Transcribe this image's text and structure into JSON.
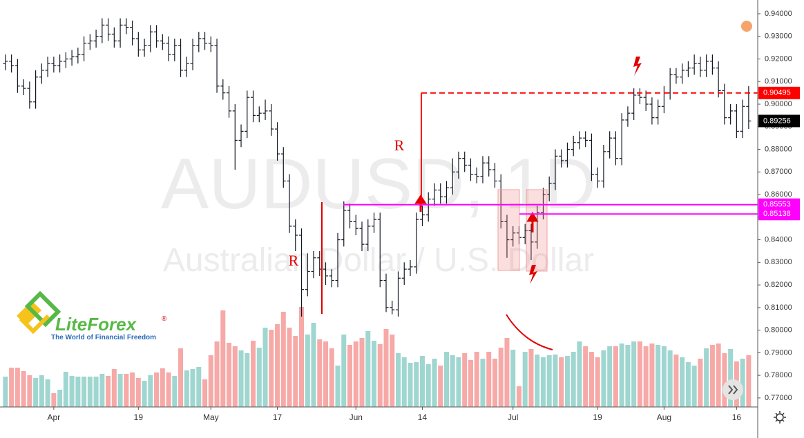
{
  "chart_data": {
    "type": "ohlc",
    "symbol": "AUDUSD, 1D",
    "description": "Australian Dollar / U.S. Dollar",
    "ohlc": [
      [
        0.918,
        0.922,
        0.915,
        0.919
      ],
      [
        0.919,
        0.922,
        0.914,
        0.917
      ],
      [
        0.917,
        0.92,
        0.905,
        0.908
      ],
      [
        0.908,
        0.911,
        0.904,
        0.907
      ],
      [
        0.907,
        0.91,
        0.898,
        0.901
      ],
      [
        0.901,
        0.915,
        0.898,
        0.912
      ],
      [
        0.912,
        0.918,
        0.909,
        0.915
      ],
      [
        0.915,
        0.921,
        0.912,
        0.918
      ],
      [
        0.918,
        0.921,
        0.914,
        0.917
      ],
      [
        0.917,
        0.922,
        0.914,
        0.919
      ],
      [
        0.919,
        0.923,
        0.916,
        0.92
      ],
      [
        0.92,
        0.924,
        0.917,
        0.921
      ],
      [
        0.921,
        0.925,
        0.918,
        0.922
      ],
      [
        0.922,
        0.93,
        0.919,
        0.927
      ],
      [
        0.927,
        0.931,
        0.924,
        0.928
      ],
      [
        0.928,
        0.933,
        0.925,
        0.93
      ],
      [
        0.93,
        0.938,
        0.927,
        0.935
      ],
      [
        0.935,
        0.938,
        0.928,
        0.931
      ],
      [
        0.931,
        0.934,
        0.925,
        0.928
      ],
      [
        0.928,
        0.938,
        0.925,
        0.935
      ],
      [
        0.935,
        0.938,
        0.931,
        0.934
      ],
      [
        0.934,
        0.937,
        0.926,
        0.929
      ],
      [
        0.929,
        0.932,
        0.921,
        0.924
      ],
      [
        0.924,
        0.929,
        0.921,
        0.926
      ],
      [
        0.926,
        0.935,
        0.923,
        0.932
      ],
      [
        0.932,
        0.935,
        0.925,
        0.928
      ],
      [
        0.928,
        0.931,
        0.924,
        0.927
      ],
      [
        0.927,
        0.93,
        0.919,
        0.922
      ],
      [
        0.922,
        0.929,
        0.919,
        0.926
      ],
      [
        0.926,
        0.929,
        0.912,
        0.915
      ],
      [
        0.915,
        0.921,
        0.912,
        0.918
      ],
      [
        0.918,
        0.929,
        0.915,
        0.926
      ],
      [
        0.926,
        0.932,
        0.923,
        0.929
      ],
      [
        0.929,
        0.932,
        0.924,
        0.927
      ],
      [
        0.927,
        0.93,
        0.923,
        0.926
      ],
      [
        0.926,
        0.929,
        0.905,
        0.908
      ],
      [
        0.908,
        0.911,
        0.902,
        0.905
      ],
      [
        0.905,
        0.908,
        0.894,
        0.897
      ],
      [
        0.897,
        0.9,
        0.871,
        0.884
      ],
      [
        0.884,
        0.891,
        0.881,
        0.888
      ],
      [
        0.888,
        0.906,
        0.885,
        0.903
      ],
      [
        0.903,
        0.906,
        0.892,
        0.895
      ],
      [
        0.895,
        0.899,
        0.892,
        0.896
      ],
      [
        0.896,
        0.902,
        0.893,
        0.897
      ],
      [
        0.897,
        0.9,
        0.886,
        0.889
      ],
      [
        0.889,
        0.892,
        0.875,
        0.878
      ],
      [
        0.878,
        0.881,
        0.863,
        0.866
      ],
      [
        0.866,
        0.869,
        0.843,
        0.846
      ],
      [
        0.846,
        0.849,
        0.835,
        0.842
      ],
      [
        0.842,
        0.845,
        0.806,
        0.818
      ],
      [
        0.818,
        0.834,
        0.815,
        0.826
      ],
      [
        0.826,
        0.835,
        0.823,
        0.832
      ],
      [
        0.832,
        0.835,
        0.824,
        0.827
      ],
      [
        0.827,
        0.83,
        0.82,
        0.824
      ],
      [
        0.824,
        0.827,
        0.819,
        0.822
      ],
      [
        0.822,
        0.843,
        0.819,
        0.84
      ],
      [
        0.84,
        0.857,
        0.837,
        0.853
      ],
      [
        0.853,
        0.856,
        0.845,
        0.848
      ],
      [
        0.848,
        0.851,
        0.842,
        0.845
      ],
      [
        0.845,
        0.848,
        0.835,
        0.838
      ],
      [
        0.838,
        0.849,
        0.835,
        0.846
      ],
      [
        0.846,
        0.852,
        0.843,
        0.849
      ],
      [
        0.849,
        0.852,
        0.819,
        0.822
      ],
      [
        0.822,
        0.825,
        0.808,
        0.81
      ],
      [
        0.81,
        0.813,
        0.807,
        0.809
      ],
      [
        0.809,
        0.826,
        0.806,
        0.823
      ],
      [
        0.823,
        0.83,
        0.82,
        0.827
      ],
      [
        0.827,
        0.831,
        0.824,
        0.828
      ],
      [
        0.828,
        0.852,
        0.825,
        0.849
      ],
      [
        0.849,
        0.855,
        0.846,
        0.851
      ],
      [
        0.851,
        0.861,
        0.848,
        0.858
      ],
      [
        0.858,
        0.865,
        0.855,
        0.862
      ],
      [
        0.862,
        0.865,
        0.856,
        0.859
      ],
      [
        0.859,
        0.866,
        0.856,
        0.863
      ],
      [
        0.863,
        0.876,
        0.86,
        0.87
      ],
      [
        0.87,
        0.879,
        0.867,
        0.876
      ],
      [
        0.876,
        0.879,
        0.87,
        0.873
      ],
      [
        0.873,
        0.876,
        0.866,
        0.869
      ],
      [
        0.869,
        0.872,
        0.865,
        0.868
      ],
      [
        0.868,
        0.877,
        0.865,
        0.874
      ],
      [
        0.874,
        0.877,
        0.868,
        0.871
      ],
      [
        0.871,
        0.874,
        0.863,
        0.866
      ],
      [
        0.866,
        0.869,
        0.845,
        0.848
      ],
      [
        0.848,
        0.851,
        0.832,
        0.84
      ],
      [
        0.84,
        0.846,
        0.837,
        0.843
      ],
      [
        0.843,
        0.846,
        0.838,
        0.841
      ],
      [
        0.841,
        0.847,
        0.838,
        0.844
      ],
      [
        0.844,
        0.847,
        0.831,
        0.839
      ],
      [
        0.839,
        0.855,
        0.836,
        0.852
      ],
      [
        0.852,
        0.863,
        0.849,
        0.86
      ],
      [
        0.86,
        0.868,
        0.857,
        0.865
      ],
      [
        0.865,
        0.88,
        0.862,
        0.877
      ],
      [
        0.877,
        0.88,
        0.872,
        0.875
      ],
      [
        0.875,
        0.883,
        0.872,
        0.88
      ],
      [
        0.88,
        0.886,
        0.877,
        0.883
      ],
      [
        0.883,
        0.888,
        0.88,
        0.885
      ],
      [
        0.885,
        0.888,
        0.881,
        0.884
      ],
      [
        0.884,
        0.887,
        0.866,
        0.869
      ],
      [
        0.869,
        0.872,
        0.863,
        0.866
      ],
      [
        0.866,
        0.882,
        0.863,
        0.879
      ],
      [
        0.879,
        0.888,
        0.876,
        0.885
      ],
      [
        0.885,
        0.888,
        0.873,
        0.876
      ],
      [
        0.876,
        0.896,
        0.873,
        0.893
      ],
      [
        0.893,
        0.899,
        0.89,
        0.896
      ],
      [
        0.896,
        0.907,
        0.893,
        0.904
      ],
      [
        0.904,
        0.907,
        0.9,
        0.903
      ],
      [
        0.903,
        0.906,
        0.897,
        0.9
      ],
      [
        0.9,
        0.903,
        0.891,
        0.894
      ],
      [
        0.894,
        0.902,
        0.891,
        0.899
      ],
      [
        0.899,
        0.908,
        0.896,
        0.905
      ],
      [
        0.905,
        0.916,
        0.902,
        0.913
      ],
      [
        0.913,
        0.916,
        0.909,
        0.912
      ],
      [
        0.912,
        0.918,
        0.909,
        0.915
      ],
      [
        0.915,
        0.919,
        0.912,
        0.916
      ],
      [
        0.916,
        0.922,
        0.913,
        0.918
      ],
      [
        0.918,
        0.921,
        0.912,
        0.915
      ],
      [
        0.915,
        0.922,
        0.912,
        0.919
      ],
      [
        0.919,
        0.922,
        0.913,
        0.916
      ],
      [
        0.916,
        0.919,
        0.903,
        0.906
      ],
      [
        0.906,
        0.909,
        0.891,
        0.894
      ],
      [
        0.894,
        0.9,
        0.891,
        0.897
      ],
      [
        0.897,
        0.9,
        0.885,
        0.888
      ],
      [
        0.888,
        0.902,
        0.885,
        0.899
      ],
      [
        0.899,
        0.908,
        0.889,
        0.89256
      ]
    ],
    "volume": [
      44,
      57,
      57,
      52,
      46,
      42,
      46,
      40,
      20,
      25,
      51,
      45,
      44,
      44,
      44,
      44,
      48,
      45,
      55,
      48,
      48,
      50,
      42,
      38,
      46,
      50,
      56,
      50,
      45,
      85,
      53,
      55,
      58,
      40,
      75,
      95,
      140,
      93,
      88,
      82,
      78,
      96,
      86,
      115,
      112,
      120,
      138,
      115,
      103,
      145,
      105,
      122,
      98,
      95,
      85,
      60,
      105,
      90,
      95,
      100,
      110,
      96,
      91,
      113,
      105,
      78,
      72,
      64,
      65,
      74,
      62,
      70,
      60,
      80,
      75,
      72,
      78,
      68,
      80,
      70,
      80,
      70,
      86,
      100,
      83,
      30,
      80,
      84,
      76,
      72,
      75,
      76,
      72,
      74,
      80,
      95,
      88,
      80,
      72,
      82,
      88,
      88,
      92,
      90,
      95,
      95,
      88,
      92,
      90,
      88,
      82,
      76,
      72,
      65,
      60,
      70,
      85,
      90,
      92,
      78,
      84,
      66,
      70,
      75
    ],
    "bar_color": "#131722",
    "volume_up_color": "#9fd6d0",
    "volume_down_color": "#f6a9a7",
    "xlim": [
      -0.9,
      124.5
    ],
    "xticks": [
      {
        "value": 8,
        "label": "Apr"
      },
      {
        "value": 22,
        "label": "19"
      },
      {
        "value": 34,
        "label": "May"
      },
      {
        "value": 45,
        "label": "17"
      },
      {
        "value": 58,
        "label": "Jun"
      },
      {
        "value": 69,
        "label": "14"
      },
      {
        "value": 84,
        "label": "Jul"
      },
      {
        "value": 98,
        "label": "19"
      },
      {
        "value": 109,
        "label": "Aug"
      },
      {
        "value": 121,
        "label": "16"
      }
    ],
    "ylim": [
      0.766,
      0.9461
    ],
    "yticks": [
      {
        "value": 0.94,
        "label": "0.94000"
      },
      {
        "value": 0.93,
        "label": "0.93000"
      },
      {
        "value": 0.92,
        "label": "0.92000"
      },
      {
        "value": 0.91,
        "label": "0.91000"
      },
      {
        "value": 0.9,
        "label": "0.90000"
      },
      {
        "value": 0.89,
        "label": "0.89000"
      },
      {
        "value": 0.88,
        "label": "0.88000"
      },
      {
        "value": 0.87,
        "label": "0.87000"
      },
      {
        "value": 0.86,
        "label": "0.86000"
      },
      {
        "value": 0.85,
        "label": "0.85000"
      },
      {
        "value": 0.84,
        "label": "0.84000"
      },
      {
        "value": 0.83,
        "label": "0.83000"
      },
      {
        "value": 0.82,
        "label": "0.82000"
      },
      {
        "value": 0.81,
        "label": "0.81000"
      },
      {
        "value": 0.8,
        "label": "0.80000"
      },
      {
        "value": 0.79,
        "label": "0.79000"
      },
      {
        "value": 0.78,
        "label": "0.78000"
      },
      {
        "value": 0.77,
        "label": "0.77000"
      }
    ],
    "levels": [
      {
        "value": 0.90495,
        "color": "#ff0000",
        "style": "dashed"
      },
      {
        "value": 0.85553,
        "color": "#ff00ff",
        "style": "solid"
      },
      {
        "value": 0.85138,
        "color": "#ff00ff",
        "style": "solid"
      }
    ],
    "last_price": {
      "value": 0.89256,
      "color": "#000000"
    },
    "annotations": [
      "R",
      "R"
    ]
  },
  "logo": {
    "name": "LiteForex",
    "mark": "®",
    "tagline": "The World of Financial Freedom"
  }
}
